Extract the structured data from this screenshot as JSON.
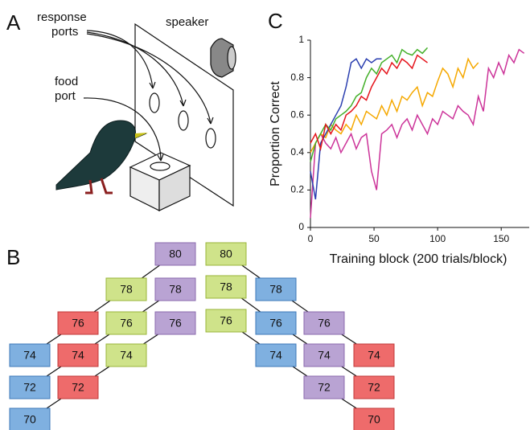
{
  "panel_letters": [
    "A",
    "B",
    "C"
  ],
  "panel_a": {
    "response_ports": [
      "response",
      "ports"
    ],
    "speaker": "speaker",
    "food_port": [
      "food",
      "port"
    ]
  },
  "panel_b": {
    "left": [
      {
        "label": "80",
        "color": "purple"
      },
      {
        "label": "78",
        "color": "green"
      },
      {
        "label": "78",
        "color": "purple"
      },
      {
        "label": "76",
        "color": "red"
      },
      {
        "label": "76",
        "color": "green"
      },
      {
        "label": "76",
        "color": "purple"
      },
      {
        "label": "74",
        "color": "blue"
      },
      {
        "label": "74",
        "color": "red"
      },
      {
        "label": "74",
        "color": "green"
      },
      {
        "label": "72",
        "color": "blue"
      },
      {
        "label": "72",
        "color": "red"
      },
      {
        "label": "70",
        "color": "blue"
      }
    ],
    "right": [
      {
        "label": "80",
        "color": "green"
      },
      {
        "label": "78",
        "color": "green"
      },
      {
        "label": "78",
        "color": "blue"
      },
      {
        "label": "76",
        "color": "green"
      },
      {
        "label": "76",
        "color": "blue"
      },
      {
        "label": "76",
        "color": "purple"
      },
      {
        "label": "74",
        "color": "blue"
      },
      {
        "label": "74",
        "color": "purple"
      },
      {
        "label": "74",
        "color": "red"
      },
      {
        "label": "72",
        "color": "purple"
      },
      {
        "label": "72",
        "color": "red"
      },
      {
        "label": "70",
        "color": "red"
      }
    ]
  },
  "chart_data": {
    "type": "line",
    "xlabel": "Training block (200 trials/block)",
    "ylabel": "Proportion Correct",
    "xlim": [
      0,
      172
    ],
    "ylim": [
      0,
      1
    ],
    "xticks": [
      0,
      50,
      100,
      150
    ],
    "yticks": [
      0,
      0.2,
      0.4,
      0.6,
      0.8,
      1
    ],
    "grid": false,
    "x": [
      0,
      4,
      8,
      12,
      16,
      20,
      24,
      28,
      32,
      36,
      40,
      44,
      48,
      52,
      56,
      60,
      64,
      68,
      72,
      76,
      80,
      84,
      88,
      92,
      96,
      100,
      104,
      108,
      112,
      116,
      120,
      124,
      128,
      132,
      136,
      140,
      144,
      148,
      152,
      156,
      160,
      164,
      168
    ],
    "series": [
      {
        "color": "#cc3399",
        "values": [
          0.05,
          0.45,
          0.5,
          0.45,
          0.42,
          0.48,
          0.4,
          0.45,
          0.5,
          0.42,
          0.48,
          0.5,
          0.3,
          0.2,
          0.5,
          0.52,
          0.55,
          0.48,
          0.55,
          0.58,
          0.52,
          0.6,
          0.55,
          0.5,
          0.58,
          0.55,
          0.62,
          0.6,
          0.58,
          0.65,
          0.62,
          0.6,
          0.55,
          0.7,
          0.62,
          0.85,
          0.8,
          0.88,
          0.82,
          0.92,
          0.88,
          0.95,
          0.93
        ]
      },
      {
        "color": "#f5a800",
        "values": [
          0.4,
          0.45,
          0.5,
          0.48,
          0.55,
          0.52,
          0.5,
          0.55,
          0.52,
          0.6,
          0.55,
          0.62,
          0.6,
          0.58,
          0.65,
          0.6,
          0.68,
          0.62,
          0.7,
          0.68,
          0.72,
          0.75,
          0.65,
          0.72,
          0.7,
          0.78,
          0.85,
          0.82,
          0.75,
          0.85,
          0.8,
          0.9,
          0.85,
          0.88,
          null,
          null,
          null,
          null,
          null,
          null,
          null,
          null,
          null
        ]
      },
      {
        "color": "#2b3fb0",
        "values": [
          0.3,
          0.15,
          0.45,
          0.5,
          0.55,
          0.6,
          0.65,
          0.75,
          0.88,
          0.9,
          0.85,
          0.9,
          0.88,
          0.9,
          0.9,
          null,
          null,
          null,
          null,
          null,
          null,
          null,
          null,
          null,
          null,
          null,
          null,
          null,
          null,
          null,
          null,
          null,
          null,
          null,
          null,
          null,
          null,
          null,
          null,
          null,
          null,
          null,
          null
        ]
      },
      {
        "color": "#44b02a",
        "values": [
          0.35,
          0.45,
          0.5,
          0.55,
          0.52,
          0.58,
          0.6,
          0.62,
          0.65,
          0.7,
          0.72,
          0.8,
          0.85,
          0.82,
          0.88,
          0.9,
          0.92,
          0.88,
          0.95,
          0.93,
          0.92,
          0.95,
          0.93,
          0.96,
          null,
          null,
          null,
          null,
          null,
          null,
          null,
          null,
          null,
          null,
          null,
          null,
          null,
          null,
          null,
          null,
          null,
          null,
          null
        ]
      },
      {
        "color": "#e5141c",
        "values": [
          0.45,
          0.5,
          0.42,
          0.55,
          0.5,
          0.55,
          0.52,
          0.6,
          0.62,
          0.65,
          0.7,
          0.68,
          0.75,
          0.8,
          0.85,
          0.82,
          0.88,
          0.85,
          0.9,
          0.88,
          0.85,
          0.92,
          0.9,
          0.88,
          null,
          null,
          null,
          null,
          null,
          null,
          null,
          null,
          null,
          null,
          null,
          null,
          null,
          null,
          null,
          null,
          null,
          null,
          null
        ]
      }
    ]
  }
}
